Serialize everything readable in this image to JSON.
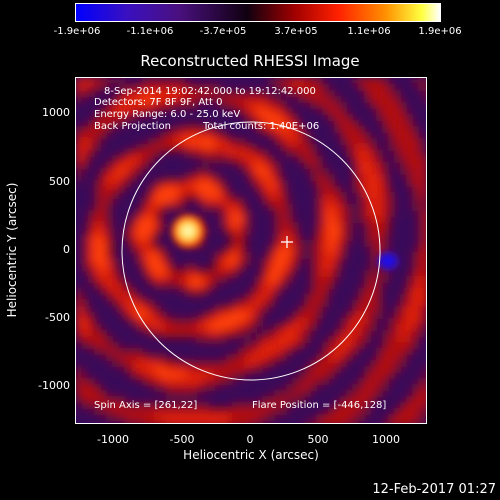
{
  "colorbar": {
    "ticks": [
      "-1.9e+06",
      "-1.1e+06",
      "-3.7e+05",
      "3.7e+05",
      "1.1e+06",
      "1.9e+06"
    ]
  },
  "title": "Reconstructed RHESSI Image",
  "info": {
    "time_range": "8-Sep-2014 19:02:42.000 to 19:12:42.000",
    "detectors": "Detectors: 7F 8F 9F, Att 0",
    "energy": "Energy Range: 6.0 - 25.0 keV",
    "method": "Back Projection",
    "counts": "Total counts: 1.40E+06",
    "spin_axis": "Spin Axis = [261,22]",
    "flare_position": "Flare Position = [-446,128]"
  },
  "axes": {
    "xlabel": "Heliocentric X (arcsec)",
    "ylabel": "Heliocentric Y (arcsec)",
    "xticks": [
      "-1000",
      "-500",
      "0",
      "500",
      "1000"
    ],
    "yticks": [
      "1000",
      "500",
      "0",
      "-500",
      "-1000"
    ]
  },
  "footer_date": "12-Feb-2017 01:27"
}
